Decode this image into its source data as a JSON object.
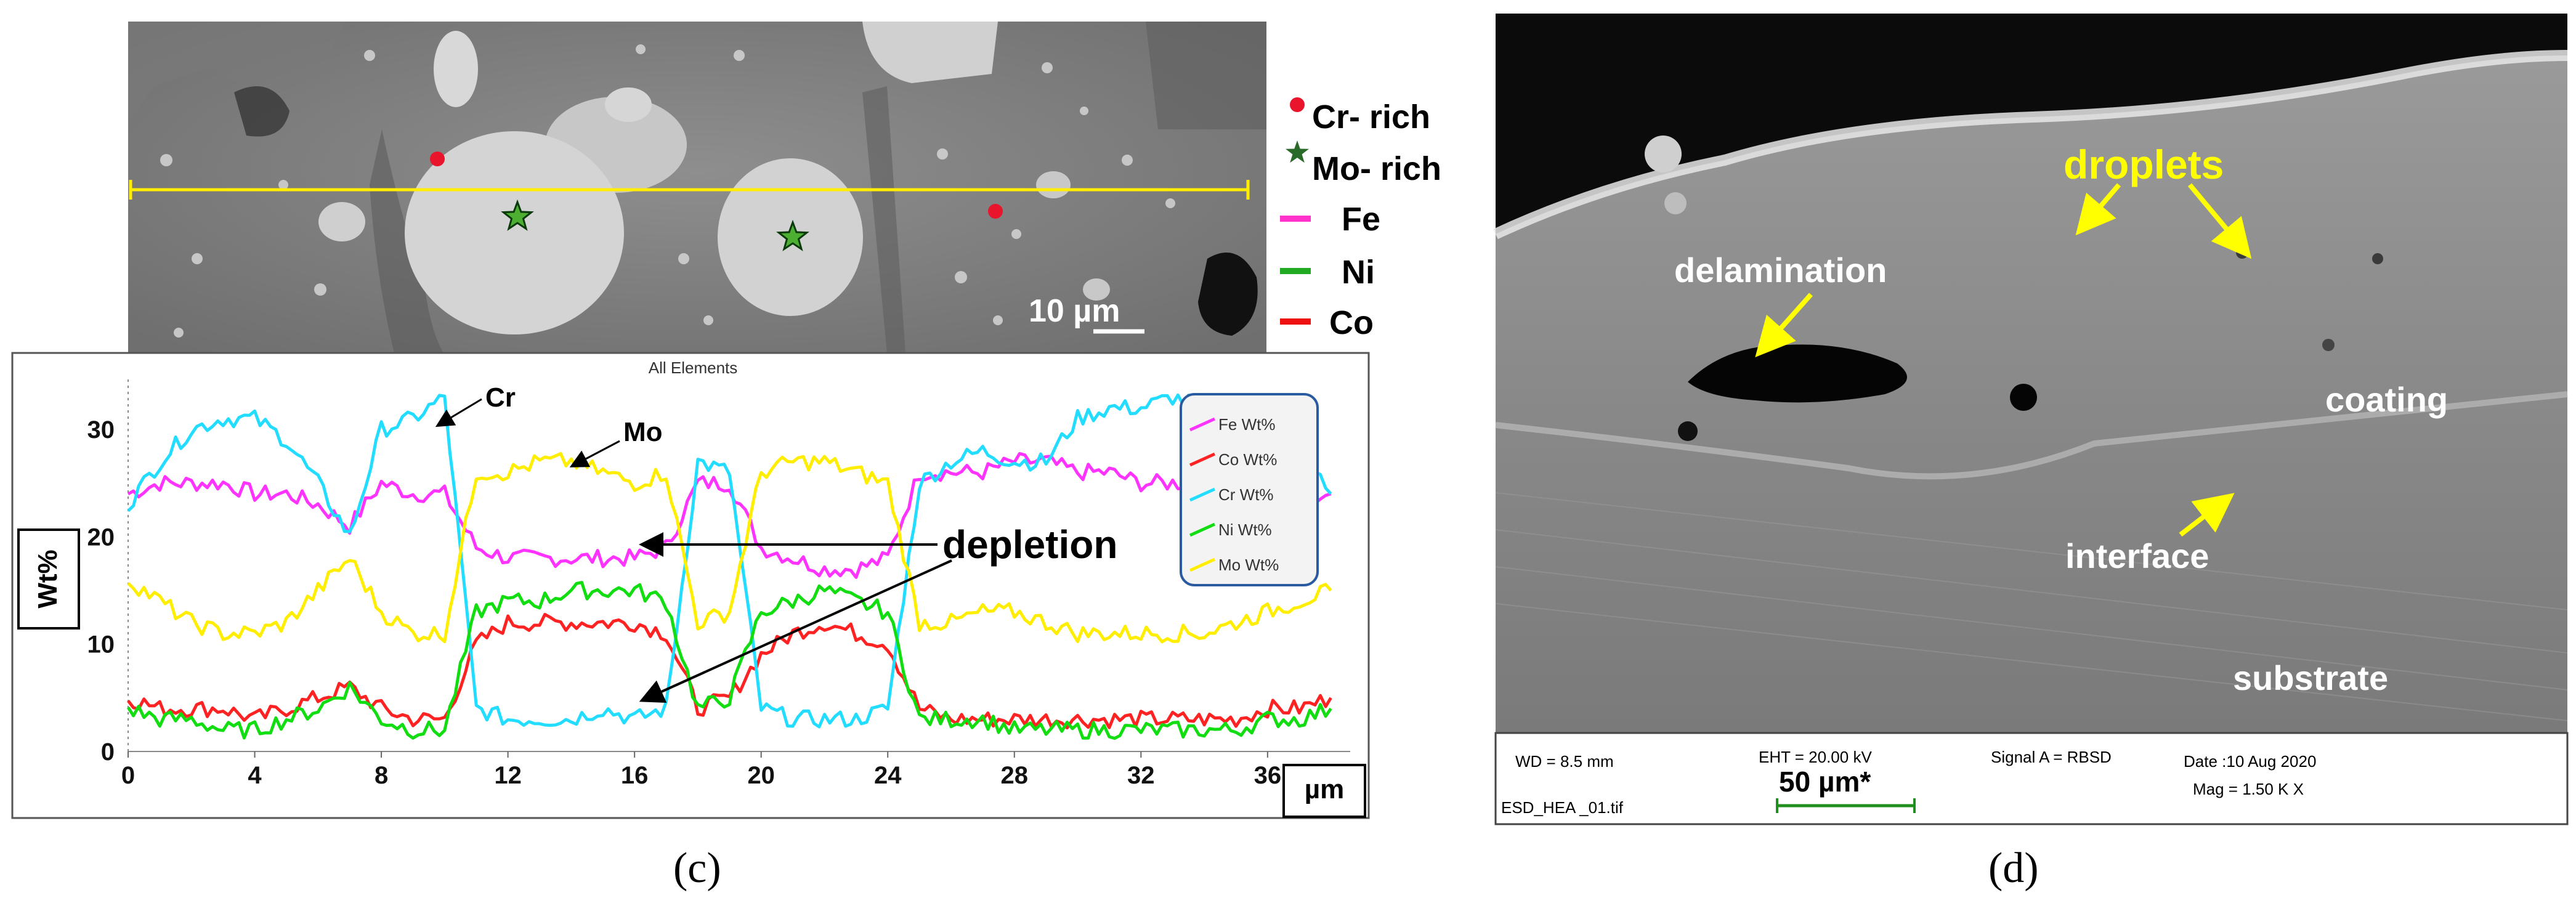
{
  "panel_c": {
    "label": "(c)",
    "sem_scale": "10 µm",
    "legend": {
      "cr_rich": "Cr- rich",
      "mo_rich": "Mo- rich",
      "fe": "Fe",
      "ni": "Ni",
      "co": "Co",
      "colors": {
        "cr_dot": "#e8152c",
        "mo_star": "#4caf32",
        "fe": "#ff33cc",
        "ni": "#22aa22",
        "co": "#ee1111",
        "line": "#ffee00"
      }
    },
    "annotations": {
      "cr": "Cr",
      "mo": "Mo",
      "depletion": "depletion"
    },
    "chart_legend": [
      "Fe Wt%",
      "Co Wt%",
      "Cr Wt%",
      "Ni Wt%",
      "Mo Wt%"
    ]
  },
  "chart_data": {
    "type": "line",
    "title": "All Elements",
    "xlabel": "µm",
    "ylabel": "Wt%",
    "xlim": [
      0,
      39
    ],
    "ylim": [
      0,
      35
    ],
    "xticks": [
      0,
      4,
      8,
      12,
      16,
      20,
      24,
      28,
      32,
      36
    ],
    "yticks": [
      0,
      10,
      20,
      30
    ],
    "x": [
      0,
      1,
      2,
      3,
      4,
      5,
      6,
      7,
      8,
      9,
      10,
      11,
      12,
      13,
      14,
      15,
      16,
      17,
      18,
      19,
      20,
      21,
      22,
      23,
      24,
      25,
      26,
      27,
      28,
      29,
      30,
      31,
      32,
      33,
      34,
      35,
      36,
      37,
      38
    ],
    "series": [
      {
        "name": "Fe Wt%",
        "color": "#ff33ff",
        "values": [
          24,
          25,
          25,
          25,
          24,
          24,
          23,
          21,
          25,
          24,
          24,
          19,
          18,
          18,
          18,
          18,
          18,
          19,
          25,
          25,
          19,
          18,
          17,
          17,
          18,
          26,
          26,
          26,
          27,
          27,
          26,
          26,
          25,
          25,
          25,
          24,
          24,
          23,
          24
        ]
      },
      {
        "name": "Co Wt%",
        "color": "#ff2222",
        "values": [
          5,
          4,
          4,
          4,
          3,
          4,
          5,
          6,
          4,
          3,
          3,
          10,
          12,
          12,
          12,
          12,
          12,
          11,
          4,
          5,
          9,
          11,
          12,
          11,
          10,
          4,
          3,
          3,
          3,
          3,
          3,
          3,
          3,
          3,
          3,
          3,
          4,
          4,
          5
        ]
      },
      {
        "name": "Cr Wt%",
        "color": "#22ddff",
        "values": [
          23,
          27,
          30,
          31,
          31,
          29,
          25,
          20,
          30,
          31,
          33,
          4,
          3,
          3,
          3,
          4,
          3,
          4,
          27,
          26,
          4,
          3,
          3,
          3,
          4,
          25,
          27,
          28,
          27,
          27,
          31,
          32,
          32,
          33,
          32,
          31,
          30,
          28,
          24
        ]
      },
      {
        "name": "Ni Wt%",
        "color": "#11dd11",
        "values": [
          4,
          3,
          3,
          2,
          2,
          3,
          4,
          6,
          3,
          2,
          2,
          13,
          14,
          14,
          15,
          15,
          15,
          14,
          4,
          5,
          13,
          14,
          15,
          14,
          13,
          3,
          3,
          3,
          2,
          2,
          2,
          2,
          2,
          2,
          2,
          2,
          3,
          3,
          4
        ]
      },
      {
        "name": "Mo Wt%",
        "color": "#ffee00",
        "values": [
          16,
          14,
          12,
          11,
          11,
          12,
          15,
          18,
          13,
          11,
          11,
          26,
          26,
          27,
          27,
          26,
          25,
          26,
          12,
          13,
          26,
          27,
          27,
          26,
          25,
          12,
          12,
          13,
          13,
          12,
          11,
          11,
          11,
          11,
          11,
          12,
          13,
          14,
          15
        ]
      }
    ]
  },
  "panel_d": {
    "label": "(d)",
    "labels": {
      "droplets": "droplets",
      "delamination": "delamination",
      "coating": "coating",
      "interface": "interface",
      "substrate": "substrate"
    },
    "info": {
      "wd": "WD =  8.5 mm",
      "eht": "EHT = 20.00 kV",
      "signal": "Signal A = RBSD",
      "date": "Date :10 Aug 2020",
      "file": "ESD_HEA _01.tif",
      "mag": "Mag =   1.50 K X",
      "scale": "50 µm*"
    }
  }
}
